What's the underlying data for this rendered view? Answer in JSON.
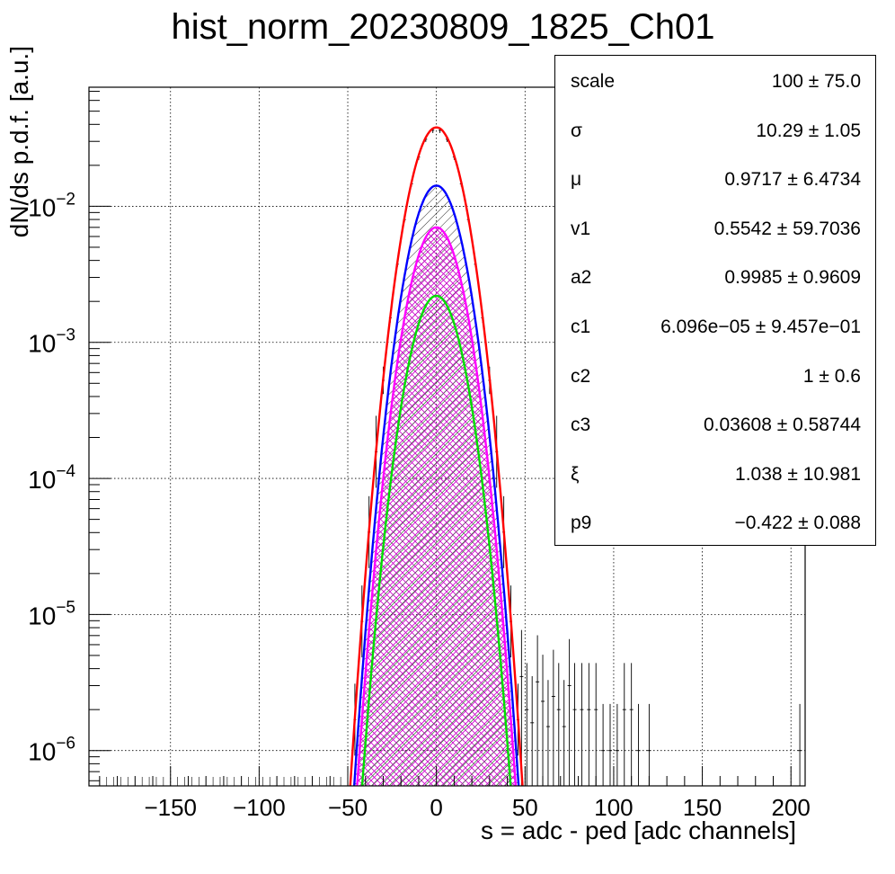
{
  "chart_data": {
    "type": "line",
    "title": "hist_norm_20230809_1825_Ch01",
    "xlabel": "s = adc - ped [adc channels]",
    "ylabel": "dN/ds p.d.f. [a.u.]",
    "xlim": [
      -196,
      208
    ],
    "ylim": [
      5.5e-07,
      0.075
    ],
    "yscale": "log",
    "grid": true,
    "x_ticks": [
      -150,
      -100,
      -50,
      0,
      50,
      100,
      150,
      200
    ],
    "x_tick_labels": [
      "−150",
      "−100",
      "−50",
      "0",
      "50",
      "100",
      "150",
      "200"
    ],
    "y_ticks": [
      1e-06,
      1e-05,
      0.0001,
      0.001,
      0.01
    ],
    "y_tick_labels": [
      {
        "base": "10",
        "exp": "−6"
      },
      {
        "base": "10",
        "exp": "−5"
      },
      {
        "base": "10",
        "exp": "−4"
      },
      {
        "base": "10",
        "exp": "−3"
      },
      {
        "base": "10",
        "exp": "−2"
      }
    ],
    "series": [
      {
        "color": "#ff0000",
        "peak_x": 0,
        "peak_y": 0.038,
        "sigma": 10.29,
        "fill": "none"
      },
      {
        "color": "#0000ff",
        "peak_x": 0,
        "peak_y": 0.0142,
        "sigma": 10.29,
        "fill": "black-hatch"
      },
      {
        "color": "#ff00ff",
        "peak_x": 0,
        "peak_y": 0.007,
        "sigma": 10.29,
        "fill": "magenta-crosshatch"
      },
      {
        "color": "#00dd00",
        "peak_x": 0,
        "peak_y": 0.0022,
        "sigma": 10.29,
        "fill": "green-hatch"
      }
    ],
    "data_points": {
      "type": "errorbar",
      "color": "#000000",
      "core_x": [
        -46,
        -42,
        -38,
        -34,
        -30,
        -26,
        -22,
        -18,
        -14,
        -10,
        -6,
        -2,
        2,
        6,
        10,
        14,
        18,
        22,
        26,
        30,
        34,
        38,
        42,
        46
      ],
      "tail_x": [
        48,
        51,
        54,
        57,
        60,
        63,
        66,
        69,
        72,
        75,
        78,
        82,
        86,
        90,
        94,
        98,
        102,
        106,
        110,
        114,
        120,
        205
      ],
      "tail_y": [
        3.5e-06,
        2e-06,
        1.6e-06,
        3.2e-06,
        2.3e-06,
        1.5e-06,
        2.5e-06,
        2e-06,
        1.5e-06,
        3e-06,
        2e-06,
        2e-06,
        2e-06,
        2e-06,
        1e-06,
        1e-06,
        1e-06,
        2e-06,
        2e-06,
        1e-06,
        1e-06,
        1e-06
      ]
    }
  },
  "stats_box": {
    "rows": [
      {
        "key": "scale",
        "value": "100 ± 75.0"
      },
      {
        "key": "σ",
        "value": "10.29 ± 1.05"
      },
      {
        "key": "μ",
        "value": "0.9717 ± 6.4734"
      },
      {
        "key": "v1",
        "value": "0.5542 ± 59.7036"
      },
      {
        "key": "a2",
        "value": "0.9985 ± 0.9609"
      },
      {
        "key": "c1",
        "value": "6.096e−05 ± 9.457e−01"
      },
      {
        "key": "c2",
        "value": "1 ± 0.6"
      },
      {
        "key": "c3",
        "value": "0.03608 ± 0.58744"
      },
      {
        "key": "ξ",
        "value": "1.038 ± 10.981"
      },
      {
        "key": "p9",
        "value": "−0.422 ± 0.088"
      }
    ]
  }
}
